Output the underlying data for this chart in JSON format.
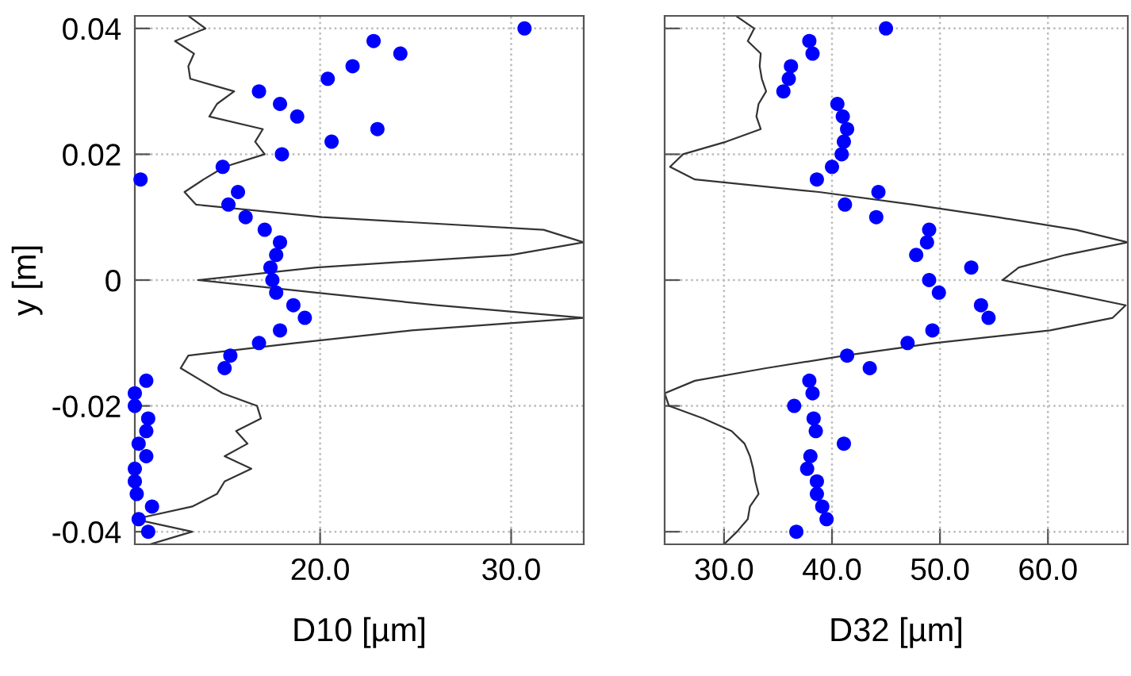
{
  "chart_data": [
    {
      "type": "scatter",
      "xlabel": "D10 [µm]",
      "ylabel": "y [m]",
      "xlim": [
        10.3,
        33.8
      ],
      "ylim": [
        -0.042,
        0.042
      ],
      "xticks": [
        {
          "value": 20,
          "label": "20.0"
        },
        {
          "value": 30,
          "label": "30.0"
        }
      ],
      "yticks": [
        {
          "value": 0.04,
          "label": "0.04"
        },
        {
          "value": 0.02,
          "label": "0.02"
        },
        0,
        {
          "value": -0.02,
          "label": "-0.02"
        },
        {
          "value": -0.04,
          "label": "-0.04"
        }
      ],
      "grid": true,
      "tick_labels": true,
      "series": [
        {
          "type": "line",
          "color": "#333333",
          "line_style": "solid",
          "marker": "none",
          "x": [
            13.1,
            14.0,
            12.4,
            13.4,
            13.1,
            13.2,
            15.5,
            14.6,
            14.2,
            17.0,
            16.6,
            17.1,
            15.0,
            13.9,
            12.9,
            13.5,
            20.1,
            31.7,
            33.8,
            30.0,
            19.8,
            13.6,
            19.8,
            26.1,
            33.8,
            24.8,
            18.7,
            13.1,
            12.7,
            13.8,
            14.9,
            16.7,
            16.9,
            15.6,
            16.2,
            15.0,
            16.4,
            15.0,
            14.6,
            13.3,
            10.3,
            13.3,
            11.1
          ],
          "values": [
            0.042,
            0.04,
            0.038,
            0.036,
            0.034,
            0.032,
            0.03,
            0.028,
            0.026,
            0.024,
            0.022,
            0.02,
            0.018,
            0.016,
            0.014,
            0.012,
            0.01,
            0.008,
            0.006,
            0.004,
            0.002,
            0,
            -0.002,
            -0.004,
            -0.006,
            -0.008,
            -0.01,
            -0.012,
            -0.014,
            -0.016,
            -0.018,
            -0.02,
            -0.022,
            -0.024,
            -0.026,
            -0.028,
            -0.03,
            -0.032,
            -0.034,
            -0.036,
            -0.038,
            -0.04,
            -0.042
          ]
        },
        {
          "color": "#0000ff",
          "marker": "circle",
          "x": [
            30.7,
            22.8,
            24.2,
            21.7,
            20.4,
            16.8,
            17.9,
            18.8,
            23.0,
            20.6,
            18.0,
            14.9,
            10.6,
            15.7,
            15.2,
            16.1,
            17.1,
            17.9,
            17.7,
            17.4,
            17.5,
            17.7,
            18.6,
            19.2,
            17.9,
            16.8,
            15.3,
            15.0,
            10.9,
            10.3,
            10.3,
            11.0,
            10.9,
            10.5,
            10.9,
            10.3,
            10.3,
            10.4,
            11.2,
            10.5,
            11.0
          ],
          "values": [
            0.04,
            0.038,
            0.036,
            0.034,
            0.032,
            0.03,
            0.028,
            0.026,
            0.024,
            0.022,
            0.02,
            0.018,
            0.016,
            0.014,
            0.012,
            0.01,
            0.008,
            0.006,
            0.004,
            0.002,
            0,
            -0.002,
            -0.004,
            -0.006,
            -0.008,
            -0.01,
            -0.012,
            -0.014,
            -0.016,
            -0.018,
            -0.02,
            -0.022,
            -0.024,
            -0.026,
            -0.028,
            -0.03,
            -0.032,
            -0.034,
            -0.036,
            -0.038,
            -0.04
          ]
        }
      ]
    },
    {
      "type": "scatter",
      "xlabel": "D32 [µm]",
      "xlim": [
        24.5,
        67.4
      ],
      "ylim": [
        -0.042,
        0.042
      ],
      "xticks": [
        {
          "value": 30,
          "label": "30.0"
        },
        {
          "value": 40,
          "label": "40.0"
        },
        {
          "value": 50,
          "label": "50.0"
        },
        {
          "value": 60,
          "label": "60.0"
        }
      ],
      "yticks": [
        {
          "value": 0.04,
          "label": null
        },
        {
          "value": 0.02,
          "label": null
        },
        {
          "value": 0,
          "label": null
        },
        {
          "value": -0.02,
          "label": null
        },
        {
          "value": -0.04,
          "label": null
        }
      ],
      "grid": true,
      "tick_labels": "x",
      "series": [
        {
          "type": "line",
          "color": "#333333",
          "line_style": "solid",
          "marker": "none",
          "x": [
            31.1,
            32.8,
            32.2,
            33.4,
            33.3,
            33.5,
            33.9,
            33.2,
            33.0,
            33.4,
            30.2,
            26.2,
            25.0,
            27.3,
            38.8,
            47.5,
            55.3,
            62.6,
            67.4,
            61.6,
            57.3,
            55.8,
            61.6,
            67.2,
            66.0,
            60.2,
            49.5,
            41.2,
            33.9,
            27.3,
            24.5,
            24.9,
            28.1,
            30.7,
            31.9,
            32.4,
            32.7,
            32.9,
            33.2,
            32.4,
            32.2,
            31.2,
            30.0
          ],
          "values": [
            0.042,
            0.04,
            0.038,
            0.036,
            0.034,
            0.032,
            0.03,
            0.028,
            0.026,
            0.024,
            0.022,
            0.02,
            0.018,
            0.016,
            0.014,
            0.012,
            0.01,
            0.008,
            0.006,
            0.004,
            0.002,
            0,
            -0.002,
            -0.004,
            -0.006,
            -0.008,
            -0.01,
            -0.012,
            -0.014,
            -0.016,
            -0.018,
            -0.02,
            -0.022,
            -0.024,
            -0.026,
            -0.028,
            -0.03,
            -0.032,
            -0.034,
            -0.036,
            -0.038,
            -0.04,
            -0.042
          ]
        },
        {
          "color": "#0000ff",
          "marker": "circle",
          "x": [
            45.0,
            37.9,
            38.2,
            36.2,
            36.0,
            35.5,
            40.5,
            41.0,
            41.4,
            41.1,
            40.9,
            40.0,
            38.6,
            44.3,
            41.2,
            44.1,
            49.0,
            48.8,
            47.8,
            52.9,
            49.0,
            49.9,
            53.8,
            54.5,
            49.3,
            47.0,
            41.4,
            43.5,
            37.9,
            38.2,
            36.5,
            38.3,
            38.5,
            41.1,
            38.0,
            37.7,
            38.6,
            38.6,
            39.1,
            39.5,
            36.7
          ],
          "values": [
            0.04,
            0.038,
            0.036,
            0.034,
            0.032,
            0.03,
            0.028,
            0.026,
            0.024,
            0.022,
            0.02,
            0.018,
            0.016,
            0.014,
            0.012,
            0.01,
            0.008,
            0.006,
            0.004,
            0.002,
            0,
            -0.002,
            -0.004,
            -0.006,
            -0.008,
            -0.01,
            -0.012,
            -0.014,
            -0.016,
            -0.018,
            -0.02,
            -0.022,
            -0.024,
            -0.026,
            -0.028,
            -0.03,
            -0.032,
            -0.034,
            -0.036,
            -0.038,
            -0.04
          ]
        }
      ]
    }
  ]
}
